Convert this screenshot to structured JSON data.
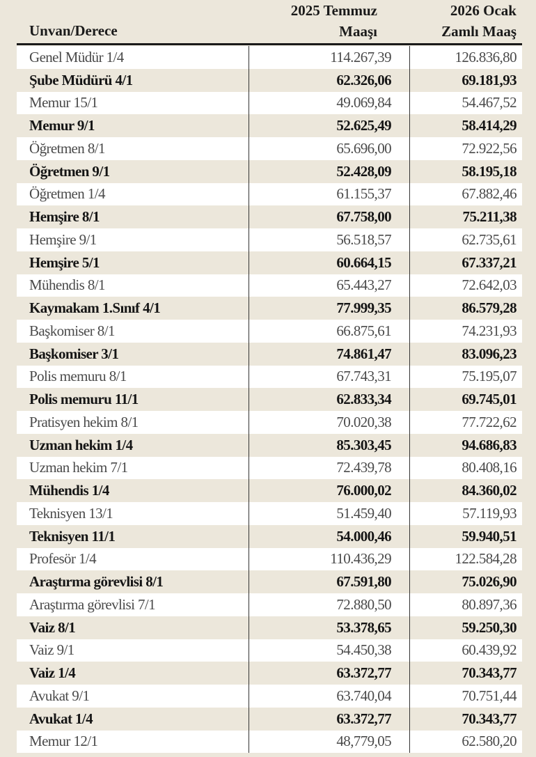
{
  "header": {
    "col0": "Unvan/Derece",
    "col1_line1": "2025 Temmuz",
    "col1_line2": "Maaşı",
    "col2_line1": "2026 Ocak",
    "col2_line2": "Zamlı Maaş"
  },
  "rows": [
    [
      "Genel Müdür 1/4",
      "114.267,39",
      "126.836,80"
    ],
    [
      "Şube Müdürü 4/1",
      "62.326,06",
      "69.181,93"
    ],
    [
      "Memur 15/1",
      "49.069,84",
      "54.467,52"
    ],
    [
      "Memur 9/1",
      "52.625,49",
      "58.414,29"
    ],
    [
      "Öğretmen 8/1",
      "65.696,00",
      "72.922,56"
    ],
    [
      "Öğretmen 9/1",
      "52.428,09",
      "58.195,18"
    ],
    [
      "Öğretmen 1/4",
      "61.155,37",
      "67.882,46"
    ],
    [
      "Hemşire 8/1",
      "67.758,00",
      "75.211,38"
    ],
    [
      "Hemşire 9/1",
      "56.518,57",
      "62.735,61"
    ],
    [
      "Hemşire 5/1",
      "60.664,15",
      "67.337,21"
    ],
    [
      "Mühendis 8/1",
      "65.443,27",
      "72.642,03"
    ],
    [
      "Kaymakam 1.Sınıf 4/1",
      "77.999,35",
      "86.579,28"
    ],
    [
      "Başkomiser 8/1",
      "66.875,61",
      "74.231,93"
    ],
    [
      "Başkomiser 3/1",
      "74.861,47",
      "83.096,23"
    ],
    [
      "Polis memuru 8/1",
      "67.743,31",
      "75.195,07"
    ],
    [
      "Polis memuru 11/1",
      "62.833,34",
      "69.745,01"
    ],
    [
      "Pratisyen hekim 8/1",
      "70.020,38",
      "77.722,62"
    ],
    [
      "Uzman hekim 1/4",
      "85.303,45",
      "94.686,83"
    ],
    [
      "Uzman hekim 7/1",
      "72.439,78",
      "80.408,16"
    ],
    [
      "Mühendis 1/4",
      "76.000,02",
      "84.360,02"
    ],
    [
      "Teknisyen 13/1",
      "51.459,40",
      "57.119,93"
    ],
    [
      "Teknisyen 11/1",
      "54.000,46",
      "59.940,51"
    ],
    [
      "Profesör 1/4",
      "110.436,29",
      "122.584,28"
    ],
    [
      "Araştırma görevlisi 8/1",
      "67.591,80",
      "75.026,90"
    ],
    [
      "Araştırma görevlisi 7/1",
      "72.880,50",
      "80.897,36"
    ],
    [
      "Vaiz 8/1",
      "53.378,65",
      "59.250,30"
    ],
    [
      "Vaiz 9/1",
      "54.450,38",
      "60.439,92"
    ],
    [
      "Vaiz 1/4",
      "63.372,77",
      "70.343,77"
    ],
    [
      "Avukat 9/1",
      "63.740,04",
      "70.751,44"
    ],
    [
      "Avukat 1/4",
      "63.372,77",
      "70.343,77"
    ],
    [
      "Memur 12/1",
      "48,779,05",
      "62.580,20"
    ]
  ]
}
